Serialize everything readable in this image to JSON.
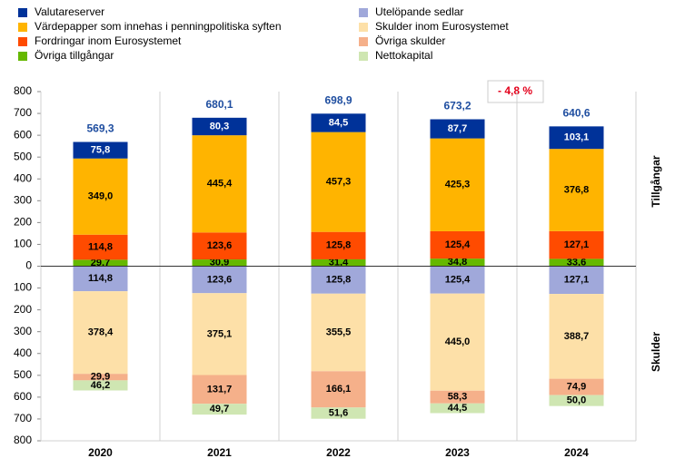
{
  "chart_data": {
    "type": "stacked-bar",
    "categories": [
      "2020",
      "2021",
      "2022",
      "2023",
      "2024"
    ],
    "series": [
      {
        "name": "Valutareserver",
        "color": "#003299",
        "values": [
          75.8,
          80.3,
          84.5,
          87.7,
          103.1
        ],
        "value_labels": [
          "75,8",
          "80,3",
          "84,5",
          "87,7",
          "103,1"
        ]
      },
      {
        "name": "Värdepapper som innehas i penningpolitiska syften",
        "color": "#ffb400",
        "values": [
          349.0,
          445.4,
          457.3,
          425.3,
          376.8
        ],
        "value_labels": [
          "349,0",
          "445,4",
          "457,3",
          "425,3",
          "376,8"
        ]
      },
      {
        "name": "Fordringar inom Eurosystemet",
        "color": "#ff4b00",
        "values": [
          114.8,
          123.6,
          125.8,
          125.4,
          127.1
        ],
        "value_labels": [
          "114,8",
          "123,6",
          "125,8",
          "125,4",
          "127,1"
        ]
      },
      {
        "name": "Övriga tillgångar",
        "color": "#65b800",
        "values": [
          29.7,
          30.9,
          31.4,
          34.8,
          33.6
        ],
        "value_labels": [
          "29,7",
          "30,9",
          "31,4",
          "34,8",
          "33,6"
        ]
      },
      {
        "name": "Utelöpande sedlar",
        "color": "#a0a8da",
        "values": [
          -114.8,
          -123.6,
          -125.8,
          -125.4,
          -127.1
        ],
        "value_labels": [
          "114,8",
          "123,6",
          "125,8",
          "125,4",
          "127,1"
        ]
      },
      {
        "name": "Skulder inom Eurosystemet",
        "color": "#fde0a8",
        "values": [
          -378.4,
          -375.1,
          -355.5,
          -445.0,
          -388.7
        ],
        "value_labels": [
          "378,4",
          "375,1",
          "355,5",
          "445,0",
          "388,7"
        ]
      },
      {
        "name": "Övriga skulder",
        "color": "#f5b08a",
        "values": [
          -29.9,
          -131.7,
          -166.1,
          -58.3,
          -74.9
        ],
        "value_labels": [
          "29,9",
          "131,7",
          "166,1",
          "58,3",
          "74,9"
        ]
      },
      {
        "name": "Nettokapital",
        "color": "#cfe6b2",
        "values": [
          -46.2,
          -49.7,
          -51.6,
          -44.5,
          -50.0
        ],
        "value_labels": [
          "46,2",
          "49,7",
          "51,6",
          "44,5",
          "50,0"
        ]
      }
    ],
    "totals": {
      "values": [
        569.3,
        680.1,
        698.9,
        673.2,
        640.6
      ],
      "value_labels": [
        "569,3",
        "680,1",
        "698,9",
        "673,2",
        "640,6"
      ]
    },
    "annotation": "- 4,8 %",
    "side_labels": [
      "Tillgångar",
      "Skulder"
    ],
    "ylim": [
      -800,
      800
    ],
    "yticks": [
      {
        "value": -800,
        "label": "800"
      },
      {
        "value": -700,
        "label": "700"
      },
      {
        "value": -600,
        "label": "600"
      },
      {
        "value": -500,
        "label": "500"
      },
      {
        "value": -400,
        "label": "400"
      },
      {
        "value": -300,
        "label": "300"
      },
      {
        "value": -200,
        "label": "200"
      },
      {
        "value": -100,
        "label": "100"
      },
      0,
      100,
      200,
      300,
      400,
      500,
      600,
      700,
      800
    ]
  }
}
